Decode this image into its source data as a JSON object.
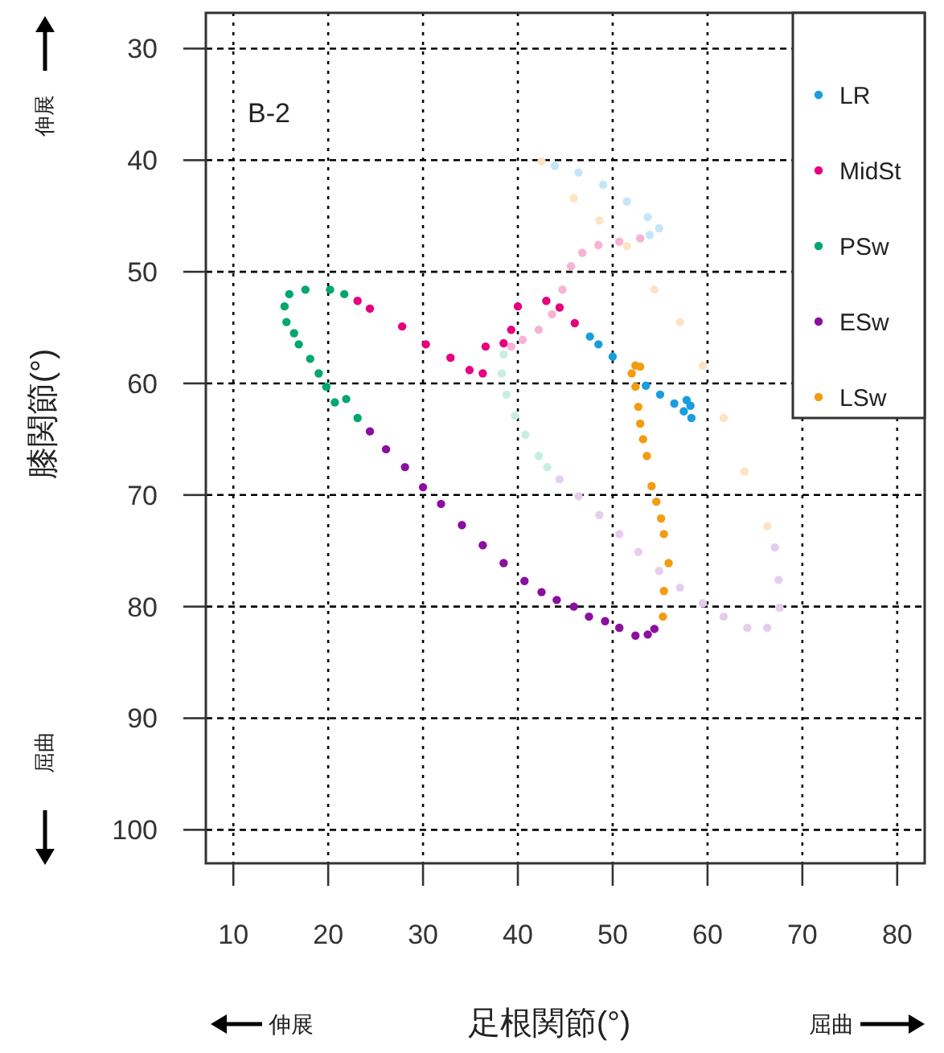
{
  "chart_data": {
    "type": "scatter",
    "xlabel": "足根関節(°)",
    "ylabel": "膝関節(°)",
    "annotations": [
      "B-2",
      "伸展",
      "屈曲",
      "伸展",
      "屈曲"
    ],
    "xlim": [
      7.1,
      82.9
    ],
    "ylim": [
      103,
      26.8
    ],
    "xticks": [
      10,
      20,
      30,
      40,
      50,
      60,
      70,
      80
    ],
    "yticks": [
      30,
      40,
      50,
      60,
      70,
      80,
      90,
      100
    ],
    "grid": true,
    "legend": "top right",
    "marker": "circle",
    "series": [
      {
        "color": "#c5e6f8",
        "x": [
          43.9,
          46.4,
          49.0,
          51.5,
          53.7,
          54.9,
          53.9
        ],
        "values": [
          40.5,
          41.1,
          42.2,
          43.7,
          45.1,
          46.1,
          46.7
        ]
      },
      {
        "color": "#f5b3d5",
        "x": [
          52.9,
          50.7,
          48.5,
          46.8,
          45.6,
          44.7,
          43.6,
          42.2,
          40.5,
          39.3
        ],
        "values": [
          47.0,
          47.3,
          47.6,
          48.3,
          49.5,
          51.6,
          53.8,
          55.2,
          56.1,
          56.7
        ]
      },
      {
        "color": "#c8eee0",
        "x": [
          38.5,
          38.3,
          38.8,
          39.7,
          40.8,
          42.2,
          43.1
        ],
        "values": [
          57.4,
          59.1,
          61.0,
          62.9,
          64.6,
          66.5,
          67.5
        ]
      },
      {
        "color": "#e6cdee",
        "x": [
          44.4,
          46.4,
          48.6,
          50.7,
          52.7,
          54.9,
          57.1,
          59.5,
          61.7,
          64.2,
          66.3,
          67.6,
          67.5,
          67.1
        ],
        "values": [
          68.6,
          70.1,
          71.8,
          73.5,
          75.1,
          76.8,
          78.3,
          79.7,
          80.9,
          81.9,
          81.9,
          80.1,
          77.6,
          74.7
        ]
      },
      {
        "color": "#fce3c4",
        "x": [
          66.3,
          63.9,
          61.7,
          59.5,
          57.1,
          54.4,
          51.5,
          48.6,
          45.9,
          42.5
        ],
        "values": [
          72.8,
          67.9,
          63.1,
          58.4,
          54.5,
          51.6,
          47.7,
          45.4,
          43.4,
          40.1
        ]
      },
      {
        "name": "LR",
        "color": "#1a9de0",
        "x": [
          47.6,
          48.5,
          50.0,
          53.5,
          55.0,
          56.5,
          57.5,
          58.3,
          58.2,
          57.8
        ],
        "values": [
          55.8,
          56.5,
          57.6,
          60.2,
          61.0,
          61.8,
          62.5,
          63.1,
          62.0,
          61.5
        ]
      },
      {
        "name": "MidSt",
        "color": "#e6007e",
        "x": [
          23.1,
          24.4,
          27.8,
          30.3,
          32.9,
          34.9,
          36.3,
          36.6,
          38.5,
          39.3,
          40.0,
          43.0,
          44.4,
          46.0
        ],
        "values": [
          52.6,
          53.3,
          54.9,
          56.5,
          57.7,
          58.8,
          59.1,
          56.7,
          56.4,
          55.2,
          53.1,
          52.6,
          53.2,
          54.6
        ]
      },
      {
        "name": "PSw",
        "color": "#00a86b",
        "x": [
          21.7,
          20.2,
          17.6,
          15.9,
          15.4,
          15.6,
          16.4,
          16.9,
          18.1,
          19.0,
          19.8,
          20.7,
          21.9,
          23.1
        ],
        "values": [
          52.0,
          51.6,
          51.6,
          52.0,
          53.1,
          54.5,
          55.5,
          56.5,
          57.8,
          59.1,
          60.3,
          61.7,
          61.4,
          63.1
        ]
      },
      {
        "name": "ESw",
        "color": "#8b0fa0",
        "x": [
          24.4,
          26.1,
          28.1,
          30.0,
          31.9,
          34.1,
          36.3,
          38.5,
          40.7,
          42.5,
          44.1,
          45.9,
          47.5,
          49.2,
          50.7,
          52.4,
          53.7,
          54.4
        ],
        "values": [
          64.3,
          65.9,
          67.5,
          69.3,
          70.8,
          72.7,
          74.5,
          76.1,
          77.7,
          78.7,
          79.4,
          80.0,
          80.9,
          81.3,
          81.9,
          82.6,
          82.5,
          82.0
        ]
      },
      {
        "name": "LSw",
        "color": "#f39c12",
        "x": [
          55.3,
          55.4,
          55.9,
          55.4,
          55.1,
          54.6,
          54.1,
          53.6,
          53.2,
          52.9,
          52.7,
          52.4,
          52.0,
          52.4,
          52.9
        ],
        "values": [
          80.9,
          78.6,
          76.1,
          73.5,
          72.1,
          70.6,
          69.2,
          66.5,
          65.0,
          63.6,
          62.1,
          60.3,
          59.1,
          58.4,
          58.5
        ]
      }
    ]
  }
}
